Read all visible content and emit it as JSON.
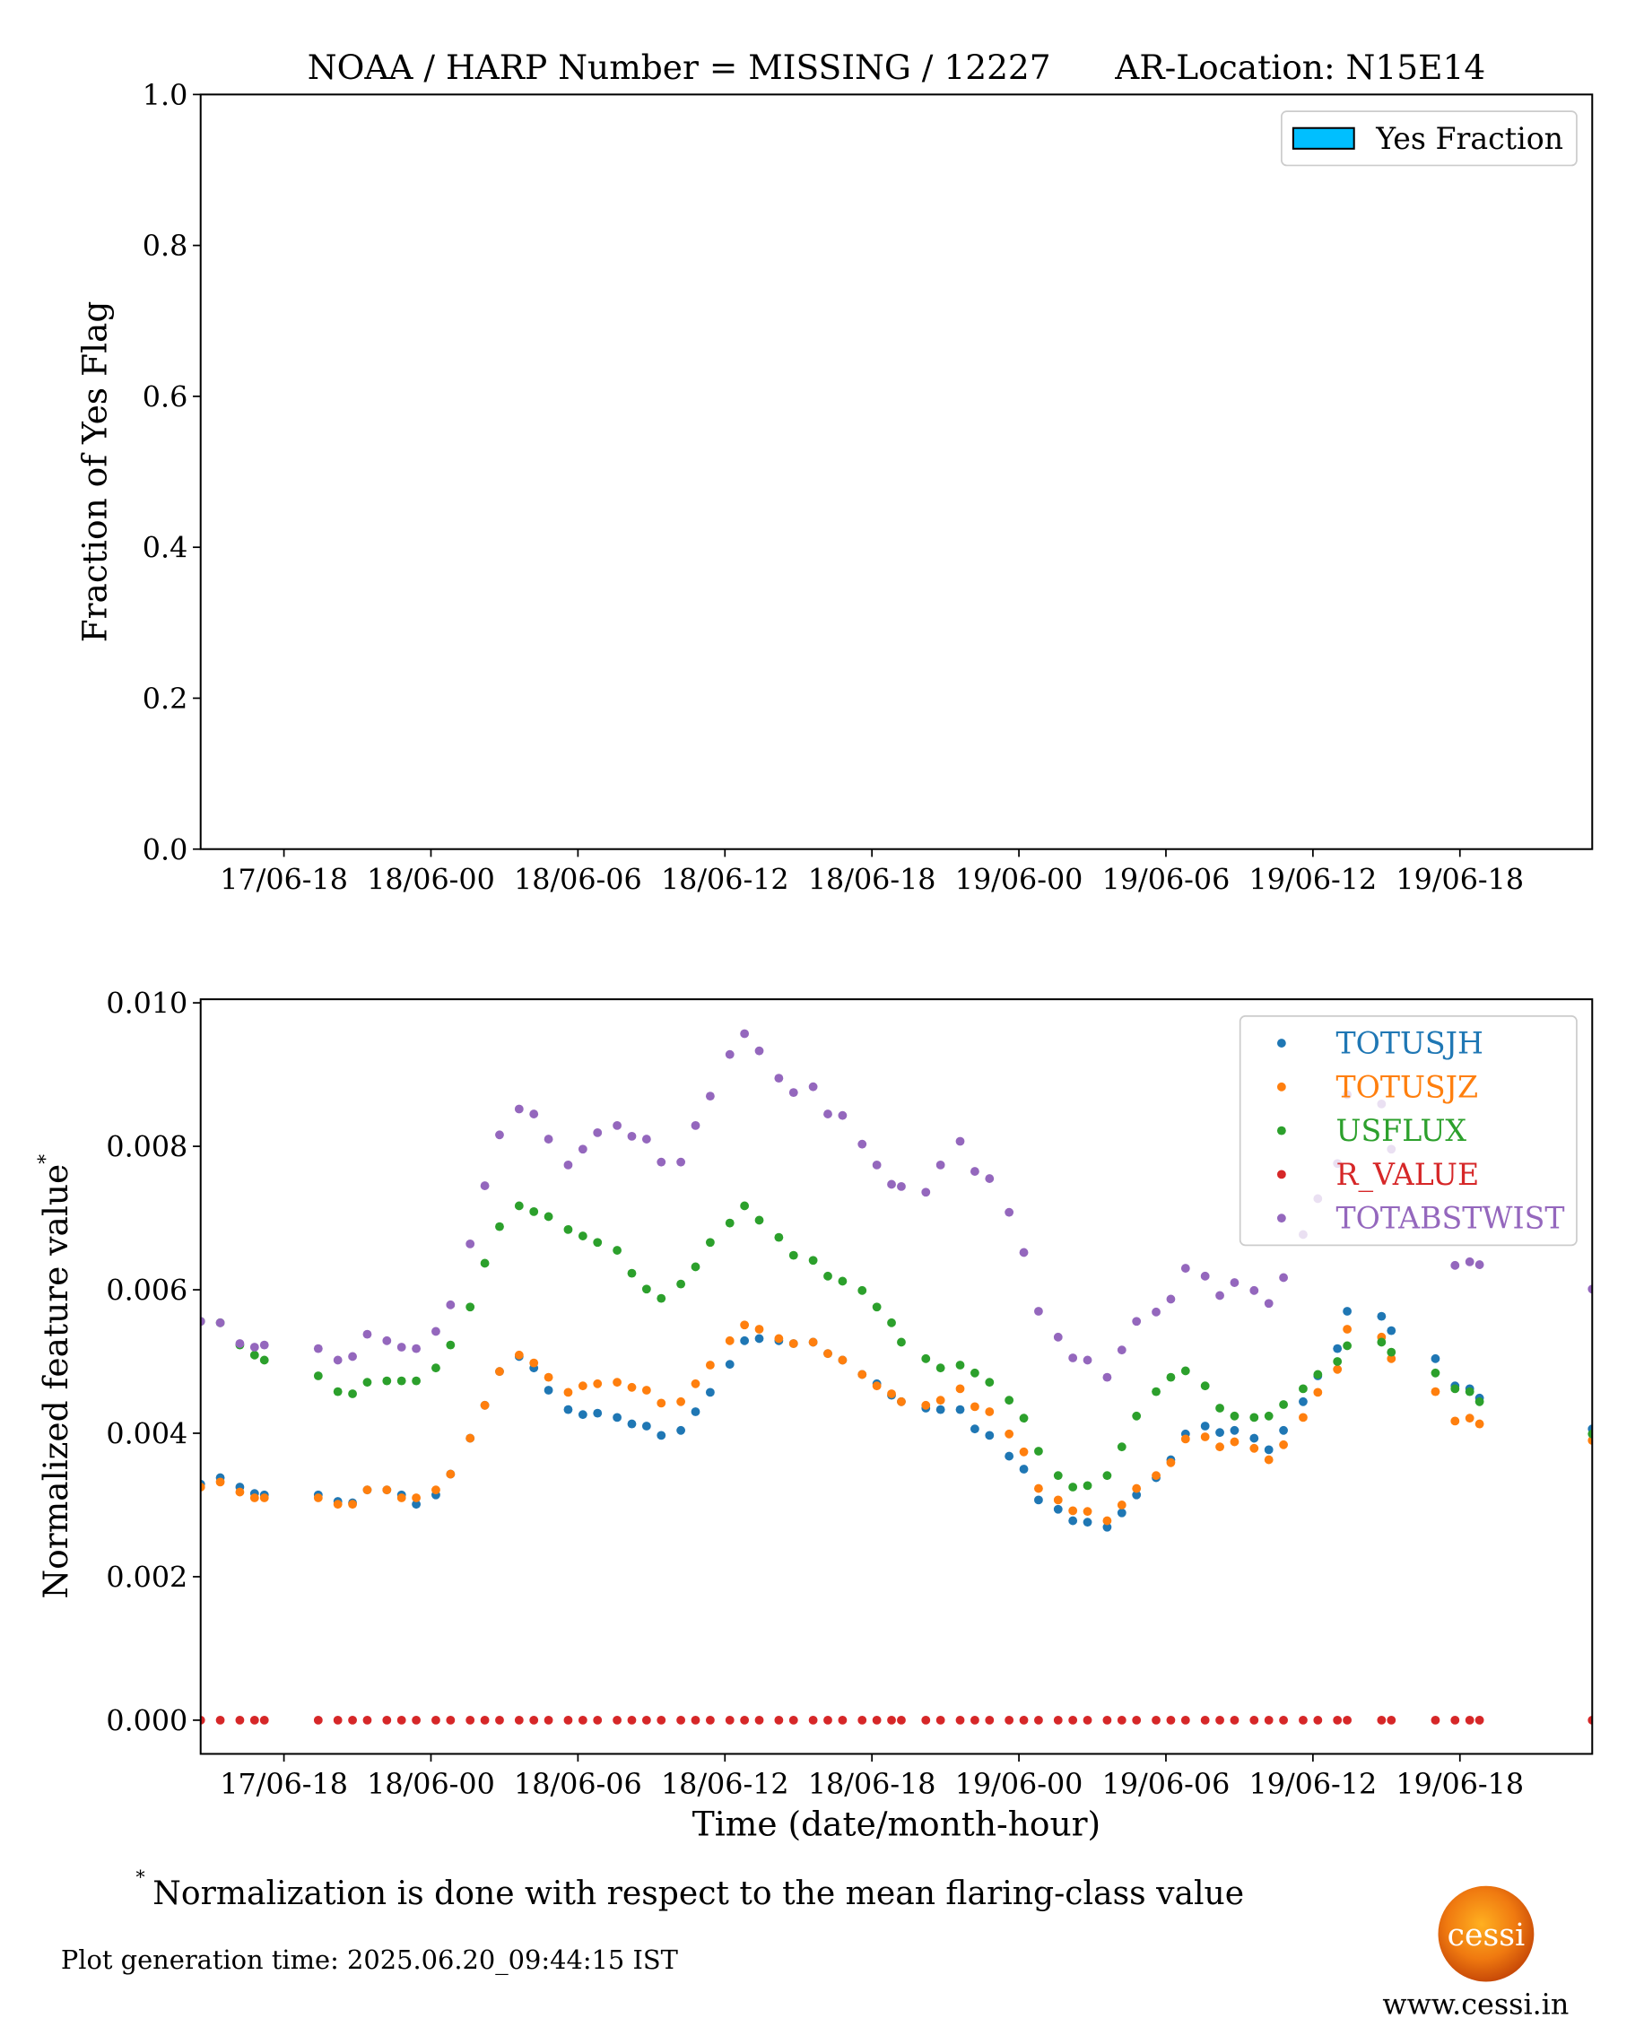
{
  "chart_data": [
    {
      "type": "bar",
      "title": "NOAA / HARP Number = MISSING / 12227      AR-Location: N15E14",
      "ylabel": "Fraction of Yes Flag",
      "x": [],
      "series": [
        {
          "name": "Yes Fraction",
          "color": "#00bfff",
          "values": []
        }
      ],
      "xlim": [
        "17/06 14:36",
        "19/06 23:24"
      ],
      "xticks": [
        {
          "value": "17/06 18:00",
          "label": "17/06-18"
        },
        {
          "value": "18/06 00:00",
          "label": "18/06-00"
        },
        {
          "value": "18/06 06:00",
          "label": "18/06-06"
        },
        {
          "value": "18/06 12:00",
          "label": "18/06-12"
        },
        {
          "value": "18/06 18:00",
          "label": "18/06-18"
        },
        {
          "value": "19/06 00:00",
          "label": "19/06-00"
        },
        {
          "value": "19/06 06:00",
          "label": "19/06-06"
        },
        {
          "value": "19/06 12:00",
          "label": "19/06-12"
        },
        {
          "value": "19/06 18:00",
          "label": "19/06-18"
        }
      ],
      "ylim": [
        0,
        1
      ],
      "yticks": [
        {
          "value": 0,
          "label": "0.0"
        },
        0.2,
        0.4,
        0.6,
        0.8,
        {
          "value": 1,
          "label": "1.0"
        }
      ],
      "legend": "upper right"
    },
    {
      "type": "scatter",
      "ylabel": "Normalized feature value",
      "ylabel_superscript": "*",
      "xlabel": "Time (date/month-hour)",
      "x": [
        "17/06 14:36",
        "17/06 15:24",
        "17/06 16:12",
        "17/06 16:48",
        "17/06 17:12",
        "17/06 19:24",
        "17/06 20:12",
        "17/06 20:48",
        "17/06 21:24",
        "17/06 22:12",
        "17/06 22:48",
        "17/06 23:24",
        "18/06 00:12",
        "18/06 00:48",
        "18/06 01:36",
        "18/06 02:12",
        "18/06 02:48",
        "18/06 03:36",
        "18/06 04:12",
        "18/06 04:48",
        "18/06 05:36",
        "18/06 06:12",
        "18/06 06:48",
        "18/06 07:36",
        "18/06 08:12",
        "18/06 08:48",
        "18/06 09:24",
        "18/06 10:12",
        "18/06 10:48",
        "18/06 11:24",
        "18/06 12:12",
        "18/06 12:48",
        "18/06 13:24",
        "18/06 14:12",
        "18/06 14:48",
        "18/06 15:36",
        "18/06 16:12",
        "18/06 16:48",
        "18/06 17:36",
        "18/06 18:12",
        "18/06 18:48",
        "18/06 19:12",
        "18/06 20:12",
        "18/06 20:48",
        "18/06 21:36",
        "18/06 22:12",
        "18/06 22:48",
        "18/06 23:36",
        "19/06 00:12",
        "19/06 00:48",
        "19/06 01:36",
        "19/06 02:12",
        "19/06 02:48",
        "19/06 03:36",
        "19/06 04:12",
        "19/06 04:48",
        "19/06 05:36",
        "19/06 06:12",
        "19/06 06:48",
        "19/06 07:36",
        "19/06 08:12",
        "19/06 08:48",
        "19/06 09:36",
        "19/06 10:12",
        "19/06 10:48",
        "19/06 11:36",
        "19/06 12:12",
        "19/06 13:00",
        "19/06 13:24",
        "19/06 14:48",
        "19/06 15:12",
        "19/06 17:00",
        "19/06 17:48",
        "19/06 18:24",
        "19/06 18:48",
        "19/06 23:24"
      ],
      "series": [
        {
          "name": "TOTUSJH",
          "color": "#1f77b4",
          "values": [
            0.00329,
            0.00338,
            0.00325,
            0.00316,
            0.00314,
            0.00314,
            0.00305,
            0.00303,
            0.00321,
            0.00321,
            0.00314,
            0.00301,
            0.00314,
            0.00343,
            0.00393,
            0.00439,
            0.00486,
            0.00507,
            0.00491,
            0.0046,
            0.00433,
            0.00426,
            0.00428,
            0.00422,
            0.00413,
            0.0041,
            0.00397,
            0.00404,
            0.0043,
            0.00457,
            0.00496,
            0.00529,
            0.00532,
            0.00529,
            0.00525,
            0.00527,
            0.00511,
            0.00502,
            0.00482,
            0.00469,
            0.00453,
            0.00444,
            0.00435,
            0.00433,
            0.00433,
            0.00406,
            0.00397,
            0.00368,
            0.0035,
            0.00307,
            0.00294,
            0.00278,
            0.00276,
            0.00269,
            0.00289,
            0.00314,
            0.00338,
            0.00363,
            0.00399,
            0.0041,
            0.00401,
            0.00404,
            0.00393,
            0.00377,
            0.00404,
            0.00444,
            0.0048,
            0.00518,
            0.0057,
            0.00563,
            0.00543,
            0.00504,
            0.00466,
            0.00462,
            0.00449,
            0.00406
          ]
        },
        {
          "name": "TOTUSJZ",
          "color": "#ff7f0e",
          "values": [
            0.00325,
            0.00332,
            0.00318,
            0.0031,
            0.0031,
            0.0031,
            0.00301,
            0.00301,
            0.00321,
            0.00321,
            0.0031,
            0.0031,
            0.00321,
            0.00343,
            0.00393,
            0.00439,
            0.00486,
            0.00509,
            0.00498,
            0.00478,
            0.00457,
            0.00466,
            0.00469,
            0.00471,
            0.00464,
            0.0046,
            0.00442,
            0.00444,
            0.00469,
            0.00495,
            0.00529,
            0.00551,
            0.00545,
            0.00532,
            0.00525,
            0.00527,
            0.00511,
            0.00502,
            0.00482,
            0.00466,
            0.00455,
            0.00444,
            0.00439,
            0.00446,
            0.00462,
            0.00437,
            0.0043,
            0.00399,
            0.00374,
            0.00323,
            0.00307,
            0.00292,
            0.00291,
            0.00278,
            0.003,
            0.00323,
            0.00341,
            0.00359,
            0.00392,
            0.00395,
            0.00381,
            0.00388,
            0.00379,
            0.00363,
            0.00384,
            0.00422,
            0.00457,
            0.00489,
            0.00545,
            0.00534,
            0.00504,
            0.00458,
            0.00417,
            0.00421,
            0.00413,
            0.0039
          ]
        },
        {
          "name": "USFLUX",
          "color": "#2ca02c",
          "values": [
            0.00556,
            0.00554,
            0.00523,
            0.00509,
            0.00502,
            0.0048,
            0.00458,
            0.00455,
            0.00471,
            0.00473,
            0.00473,
            0.00473,
            0.00491,
            0.00523,
            0.00576,
            0.00637,
            0.00688,
            0.00717,
            0.00709,
            0.00702,
            0.00684,
            0.00675,
            0.00666,
            0.00655,
            0.00623,
            0.00601,
            0.00588,
            0.00608,
            0.00632,
            0.00666,
            0.00693,
            0.00717,
            0.00697,
            0.00673,
            0.00648,
            0.00641,
            0.00619,
            0.00612,
            0.00599,
            0.00576,
            0.00554,
            0.00527,
            0.00504,
            0.00491,
            0.00495,
            0.00484,
            0.00471,
            0.00446,
            0.00421,
            0.00375,
            0.00341,
            0.00325,
            0.00327,
            0.00341,
            0.00381,
            0.00424,
            0.00458,
            0.00478,
            0.00487,
            0.00466,
            0.00435,
            0.00424,
            0.00422,
            0.00424,
            0.0044,
            0.00462,
            0.00482,
            0.005,
            0.00522,
            0.00527,
            0.00513,
            0.00484,
            0.00462,
            0.00458,
            0.00444,
            0.00399
          ]
        },
        {
          "name": "R_VALUE",
          "color": "#d62728",
          "values": [
            0,
            0,
            0,
            0,
            0,
            0,
            0,
            0,
            0,
            0,
            0,
            0,
            0,
            0,
            0,
            0,
            0,
            0,
            0,
            0,
            0,
            0,
            0,
            0,
            0,
            0,
            0,
            0,
            0,
            0,
            0,
            0,
            0,
            0,
            0,
            0,
            0,
            0,
            0,
            0,
            0,
            0,
            0,
            0,
            0,
            0,
            0,
            0,
            0,
            0,
            0,
            0,
            0,
            0,
            0,
            0,
            0,
            0,
            0,
            0,
            0,
            0,
            0,
            0,
            0,
            0,
            0,
            0,
            0,
            0,
            0,
            0,
            0,
            0,
            0,
            0
          ]
        },
        {
          "name": "TOTABSTWIST",
          "color": "#9467bd",
          "values": [
            0.00556,
            0.00554,
            0.00525,
            0.0052,
            0.00523,
            0.00518,
            0.00502,
            0.00507,
            0.00538,
            0.00529,
            0.0052,
            0.00518,
            0.00542,
            0.00579,
            0.00664,
            0.00745,
            0.00816,
            0.00852,
            0.00845,
            0.0081,
            0.00774,
            0.00796,
            0.00819,
            0.00829,
            0.00814,
            0.0081,
            0.00778,
            0.00778,
            0.00829,
            0.0087,
            0.00928,
            0.00957,
            0.00933,
            0.00895,
            0.00875,
            0.00883,
            0.00845,
            0.00843,
            0.00803,
            0.00774,
            0.00747,
            0.00744,
            0.00736,
            0.00774,
            0.00807,
            0.00765,
            0.00755,
            0.00708,
            0.00652,
            0.0057,
            0.00534,
            0.00505,
            0.00502,
            0.00478,
            0.00516,
            0.00556,
            0.00569,
            0.00587,
            0.0063,
            0.00619,
            0.00592,
            0.0061,
            0.00599,
            0.00581,
            0.00617,
            0.00677,
            0.00727,
            0.00776,
            0.00872,
            0.00859,
            0.00796,
            null,
            0.00634,
            0.00639,
            0.00635,
            0.00601
          ]
        }
      ],
      "xlim": [
        "17/06 14:36",
        "19/06 23:24"
      ],
      "xticks": [
        {
          "value": "17/06 18:00",
          "label": "17/06-18"
        },
        {
          "value": "18/06 00:00",
          "label": "18/06-00"
        },
        {
          "value": "18/06 06:00",
          "label": "18/06-06"
        },
        {
          "value": "18/06 12:00",
          "label": "18/06-12"
        },
        {
          "value": "18/06 18:00",
          "label": "18/06-18"
        },
        {
          "value": "19/06 00:00",
          "label": "19/06-00"
        },
        {
          "value": "19/06 06:00",
          "label": "19/06-06"
        },
        {
          "value": "19/06 12:00",
          "label": "19/06-12"
        },
        {
          "value": "19/06 18:00",
          "label": "19/06-18"
        }
      ],
      "ylim": [
        -0.00047,
        0.01005
      ],
      "yticks": [
        {
          "value": 0,
          "label": "0.000"
        },
        {
          "value": 0.002,
          "label": "0.002"
        },
        {
          "value": 0.004,
          "label": "0.004"
        },
        {
          "value": 0.006,
          "label": "0.006"
        },
        {
          "value": 0.008,
          "label": "0.008"
        },
        {
          "value": 0.01,
          "label": "0.010"
        }
      ],
      "legend": "upper right"
    }
  ],
  "footnote": {
    "marker": "*",
    "text": "Normalization is done with respect to the mean flaring-class value"
  },
  "generation_time": "Plot generation time: 2025.06.20_09:44:15 IST",
  "logo": {
    "text": "cessi",
    "url": "www.cessi.in"
  }
}
